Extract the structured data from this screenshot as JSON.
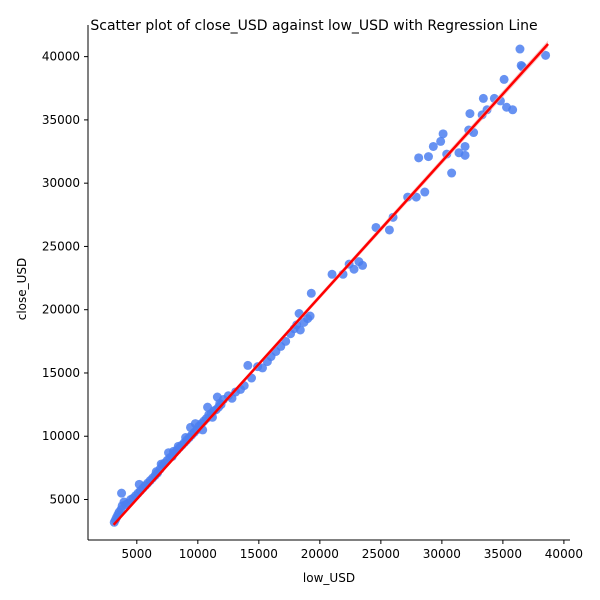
{
  "chart_data": {
    "type": "scatter",
    "title": "Scatter plot of close_USD against low_USD with Regression Line",
    "xlabel": "low_USD",
    "ylabel": "close_USD",
    "xlim": [
      1000,
      40500
    ],
    "ylim": [
      1800,
      42500
    ],
    "xticks": [
      5000,
      10000,
      15000,
      20000,
      25000,
      30000,
      35000,
      40000
    ],
    "yticks": [
      5000,
      10000,
      15000,
      20000,
      25000,
      30000,
      35000,
      40000
    ],
    "grid": false,
    "colors": {
      "points": "#4c7ff0",
      "regression": "#ff0000",
      "band": "#f4a6a6"
    },
    "regression": {
      "x": [
        3100,
        38700
      ],
      "y": [
        3000,
        41000
      ]
    },
    "points": {
      "x": [
        3150,
        3250,
        3350,
        3450,
        3550,
        3700,
        3800,
        3950,
        3750,
        4100,
        4300,
        4500,
        4700,
        4900,
        5100,
        5300,
        5500,
        5700,
        5900,
        6100,
        6300,
        6500,
        6700,
        6900,
        7100,
        7300,
        7500,
        7700,
        7900,
        8100,
        8300,
        8500,
        8700,
        8900,
        9100,
        9300,
        9500,
        9700,
        9900,
        10100,
        10300,
        10500,
        10700,
        10900,
        11100,
        11300,
        11500,
        11700,
        11900,
        5200,
        6600,
        7000,
        7600,
        8000,
        8400,
        9000,
        9400,
        9800,
        10400,
        10800,
        11200,
        11800,
        11600,
        12100,
        12500,
        12800,
        13100,
        13500,
        13800,
        14100,
        14400,
        14900,
        15300,
        15700,
        16000,
        16400,
        16800,
        17200,
        17600,
        17900,
        18100,
        18400,
        18700,
        19000,
        19200,
        18300,
        19300,
        21000,
        21900,
        22400,
        22800,
        23200,
        23500,
        24600,
        25700,
        26000,
        27200,
        27900,
        28600,
        28100,
        28900,
        29300,
        29900,
        30100,
        30400,
        30800,
        31400,
        31900,
        31900,
        32200,
        32300,
        32600,
        33300,
        33400,
        33700,
        34300,
        34800,
        35100,
        35300,
        35800,
        36400,
        36500,
        36600,
        38500
      ],
      "y": [
        3200,
        3400,
        3600,
        3800,
        4000,
        4200,
        4500,
        4800,
        5500,
        4600,
        4700,
        5000,
        5100,
        5300,
        5500,
        5700,
        5900,
        6100,
        6300,
        6500,
        6700,
        6900,
        7100,
        7400,
        7700,
        7900,
        8100,
        8300,
        8400,
        8700,
        8900,
        9100,
        9300,
        9500,
        9700,
        9900,
        10100,
        10300,
        10500,
        10800,
        11000,
        11200,
        11400,
        11700,
        11800,
        12000,
        12100,
        12300,
        12500,
        6200,
        7200,
        7800,
        8700,
        8800,
        9200,
        9900,
        10700,
        11000,
        10500,
        12300,
        11500,
        12600,
        13100,
        12900,
        13200,
        13000,
        13500,
        13700,
        14000,
        15600,
        14600,
        15500,
        15400,
        15900,
        16300,
        16700,
        17100,
        17500,
        18100,
        18500,
        18800,
        18400,
        19000,
        19300,
        19500,
        19700,
        21300,
        22800,
        22800,
        23600,
        23200,
        23800,
        23500,
        26500,
        26300,
        27300,
        28900,
        28900,
        29300,
        32000,
        32100,
        32900,
        33300,
        33900,
        32300,
        30800,
        32400,
        32200,
        32900,
        34200,
        35500,
        34000,
        35400,
        36700,
        35800,
        36700,
        36500,
        38200,
        36000,
        35800,
        40600,
        39300,
        39200,
        40100
      ]
    }
  }
}
